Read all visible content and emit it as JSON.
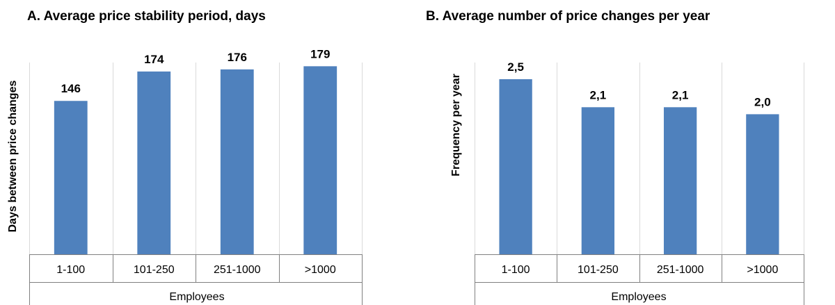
{
  "chart_data": [
    {
      "type": "bar",
      "title": "A. Average price stability period, days",
      "ylabel": "Days between price changes",
      "xlabel": "Employees",
      "categories": [
        "1-100",
        "101-250",
        "251-1000",
        ">1000"
      ],
      "values": [
        146,
        174,
        176,
        179
      ],
      "data_labels": [
        "146",
        "174",
        "176",
        "179"
      ],
      "ylim": [
        0,
        200
      ],
      "bar_color": "#4f81bd",
      "grid": "vertical separators"
    },
    {
      "type": "bar",
      "title": "B. Average number of price changes per year",
      "ylabel": "Frequency per year",
      "xlabel": "Employees",
      "categories": [
        "1-100",
        "101-250",
        "251-1000",
        ">1000"
      ],
      "values": [
        2.5,
        2.1,
        2.1,
        2.0
      ],
      "data_labels": [
        "2,5",
        "2,1",
        "2,1",
        "2,0"
      ],
      "ylim": [
        0,
        3
      ],
      "bar_color": "#4f81bd",
      "grid": "vertical separators"
    }
  ]
}
